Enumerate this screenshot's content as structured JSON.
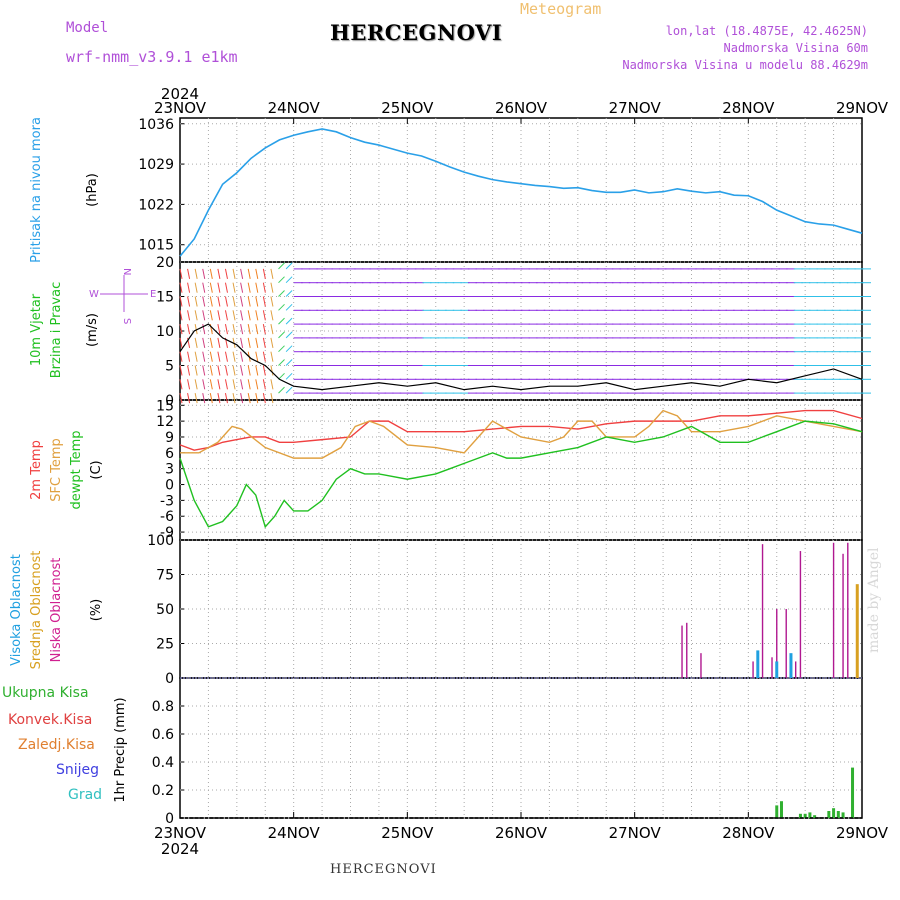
{
  "header": {
    "title": "HERCEGNOVI",
    "model_label": "Model",
    "model_name": "wrf-nmm_v3.9.1 e1km",
    "meteogram_label": "Meteogram",
    "lonlat": "lon,lat (18.4875E, 42.4625N)",
    "elevation": "Nadmorska Visina 60m",
    "model_elevation": "Nadmorska Visina u modelu 88.4629m"
  },
  "footer": {
    "station": "HERCEGNOVI",
    "credit": "made by Angel"
  },
  "colors": {
    "pressure": "#2aa0e8",
    "temp2m": "#f04040",
    "sfc": "#e0a040",
    "dewpt": "#20c020",
    "high_cloud": "#20a0e0",
    "mid_cloud": "#d8a020",
    "low_cloud": "#b01890",
    "total_precip": "#30b030",
    "conv_precip": "#e04040",
    "frozen": "#e08030",
    "snow": "#4040e0",
    "hail": "#30c0c0",
    "wind_purple": "#8a2be2",
    "wind_cyan": "#30c0e8"
  },
  "chart_data": [
    {
      "type": "line",
      "name": "pressure",
      "x_top_year": "2024",
      "x_bottom_year": "2024",
      "ylabel": "Pritisak na nivou mora",
      "unit": "(hPa)",
      "ylim": [
        1012,
        1037
      ],
      "yticks": [
        "1036",
        "1029",
        "1022",
        "1015"
      ],
      "xlim": [
        0,
        144
      ],
      "xticks": [
        "23NOV",
        "24NOV",
        "25NOV",
        "26NOV",
        "27NOV",
        "28NOV",
        "29NOV"
      ],
      "series": [
        {
          "x": [
            0,
            3,
            6,
            9,
            12,
            15,
            18,
            21,
            24,
            27,
            30,
            33,
            36,
            39,
            42,
            45,
            48,
            51,
            54,
            57,
            60,
            63,
            66,
            69,
            72,
            75,
            78,
            81,
            84,
            87,
            90,
            93,
            96,
            99,
            102,
            105,
            108,
            111,
            114,
            117,
            120,
            123,
            126,
            129,
            132,
            135,
            138,
            141,
            144
          ],
          "values": [
            1013,
            1016,
            1021,
            1025.5,
            1027.5,
            1030,
            1031.8,
            1033.2,
            1034,
            1034.6,
            1035.1,
            1034.6,
            1033.6,
            1032.8,
            1032.3,
            1031.6,
            1030.9,
            1030.4,
            1029.5,
            1028.5,
            1027.6,
            1026.9,
            1026.3,
            1025.9,
            1025.6,
            1025.3,
            1025.1,
            1024.8,
            1024.9,
            1024.4,
            1024.1,
            1024.1,
            1024.5,
            1024,
            1024.2,
            1024.7,
            1024.3,
            1024,
            1024.2,
            1023.6,
            1023.5,
            1022.5,
            1021,
            1020,
            1019,
            1018.6,
            1018.4,
            1017.7,
            1017
          ]
        }
      ]
    },
    {
      "type": "scatter",
      "name": "wind",
      "ylabel": "10m Vjetar Brzina i Pravac",
      "unit": "(m/s)",
      "ylim": [
        0,
        20
      ],
      "yticks": [
        "20",
        "15",
        "10",
        "5",
        "0"
      ],
      "compass": {
        "n": "N",
        "s": "S",
        "e": "E",
        "w": "W"
      },
      "speed": {
        "x": [
          0,
          3,
          6,
          9,
          12,
          15,
          18,
          21,
          24,
          30,
          36,
          42,
          48,
          54,
          60,
          66,
          72,
          78,
          84,
          90,
          96,
          102,
          108,
          114,
          120,
          126,
          132,
          138,
          144
        ],
        "values": [
          7,
          10,
          11,
          9,
          8,
          6,
          5,
          3,
          2,
          1.5,
          2,
          2.5,
          2,
          2.5,
          1.5,
          2,
          1.5,
          2,
          2,
          2.5,
          1.5,
          2,
          2.5,
          2,
          3,
          2.5,
          3.5,
          4.5,
          3
        ]
      }
    },
    {
      "type": "line",
      "name": "temperature",
      "ylabel": "2m Temp / SFC Temp / dewpt Temp",
      "unit": "(C)",
      "ylim": [
        -10.5,
        16
      ],
      "yticks": [
        "15",
        "12",
        "9",
        "6",
        "3",
        "0",
        "-3",
        "-6",
        "-9"
      ],
      "series": [
        {
          "name": "2m Temp",
          "x": [
            0,
            3,
            6,
            9,
            12,
            15,
            18,
            21,
            24,
            30,
            36,
            40,
            44,
            48,
            54,
            60,
            66,
            72,
            78,
            84,
            90,
            96,
            102,
            108,
            114,
            120,
            126,
            132,
            138,
            144
          ],
          "values": [
            7.5,
            6.5,
            7,
            8,
            8.5,
            9,
            9,
            8,
            8,
            8.5,
            9,
            12,
            12,
            10,
            10,
            10,
            10.5,
            11,
            11,
            10.5,
            11.5,
            12,
            12,
            12,
            13,
            13,
            13.5,
            14,
            14,
            12.5
          ]
        },
        {
          "name": "SFC Temp",
          "x": [
            0,
            4,
            8,
            11,
            13,
            18,
            24,
            30,
            34,
            37,
            40,
            43,
            48,
            54,
            60,
            63,
            66,
            72,
            78,
            81,
            84,
            87,
            90,
            96,
            99,
            102,
            105,
            108,
            114,
            120,
            126,
            132,
            138,
            144
          ],
          "values": [
            6,
            6,
            8,
            11,
            10.5,
            7,
            5,
            5,
            7,
            11,
            12,
            11,
            7.5,
            7,
            6,
            9,
            12,
            9,
            8,
            9,
            12,
            12,
            9,
            9,
            11,
            14,
            13,
            10,
            10,
            11,
            13,
            12,
            11,
            10
          ]
        },
        {
          "name": "dewpt Temp",
          "x": [
            0,
            3,
            6,
            9,
            12,
            14,
            16,
            18,
            20,
            22,
            24,
            27,
            30,
            33,
            36,
            39,
            42,
            48,
            54,
            57,
            60,
            63,
            66,
            69,
            72,
            78,
            84,
            90,
            96,
            102,
            108,
            114,
            120,
            126,
            132,
            138,
            144
          ],
          "values": [
            5,
            -3,
            -8,
            -7,
            -4,
            0,
            -2,
            -8,
            -6,
            -3,
            -5,
            -5,
            -3,
            1,
            3,
            2,
            2,
            1,
            2,
            3,
            4,
            5,
            6,
            5,
            5,
            6,
            7,
            9,
            8,
            9,
            11,
            8,
            8,
            10,
            12,
            11.5,
            10
          ]
        }
      ]
    },
    {
      "type": "bar",
      "name": "cloud",
      "ylabel": "Visoka Oblacnost / Srednja Oblacnost / Niska Oblacnost",
      "unit": "(%)",
      "ylim": [
        0,
        100
      ],
      "yticks": [
        "100",
        "75",
        "50",
        "25",
        "0"
      ],
      "series": [
        {
          "name": "Niska Oblacnost",
          "x": [
            106,
            107,
            110,
            121,
            123,
            125,
            126,
            128,
            130,
            131,
            138,
            140,
            141
          ],
          "values": [
            38,
            40,
            18,
            12,
            97,
            15,
            50,
            50,
            12,
            92,
            98,
            90,
            98
          ]
        },
        {
          "name": "Visoka Oblacnost",
          "x": [
            122,
            126,
            129
          ],
          "values": [
            20,
            12,
            18
          ]
        },
        {
          "name": "Srednja Oblacnost",
          "x": [
            143
          ],
          "values": [
            68
          ]
        }
      ]
    },
    {
      "type": "bar",
      "name": "precip",
      "ylabel": "1hr Precip",
      "unit": "(mm)",
      "ylim": [
        0,
        1.0
      ],
      "yticks": [
        "0.8",
        "0.6",
        "0.4",
        "0.2",
        "0"
      ],
      "legend": [
        "Ukupna Kisa",
        "Konvek.Kisa",
        "Zaledj.Kisa",
        "Snijeg",
        "Grad"
      ],
      "series": [
        {
          "name": "Ukupna Kisa",
          "x": [
            126,
            127,
            131,
            132,
            133,
            134,
            137,
            138,
            139,
            140,
            142
          ],
          "values": [
            0.09,
            0.12,
            0.03,
            0.03,
            0.04,
            0.02,
            0.05,
            0.07,
            0.05,
            0.04,
            0.36
          ]
        }
      ]
    }
  ]
}
